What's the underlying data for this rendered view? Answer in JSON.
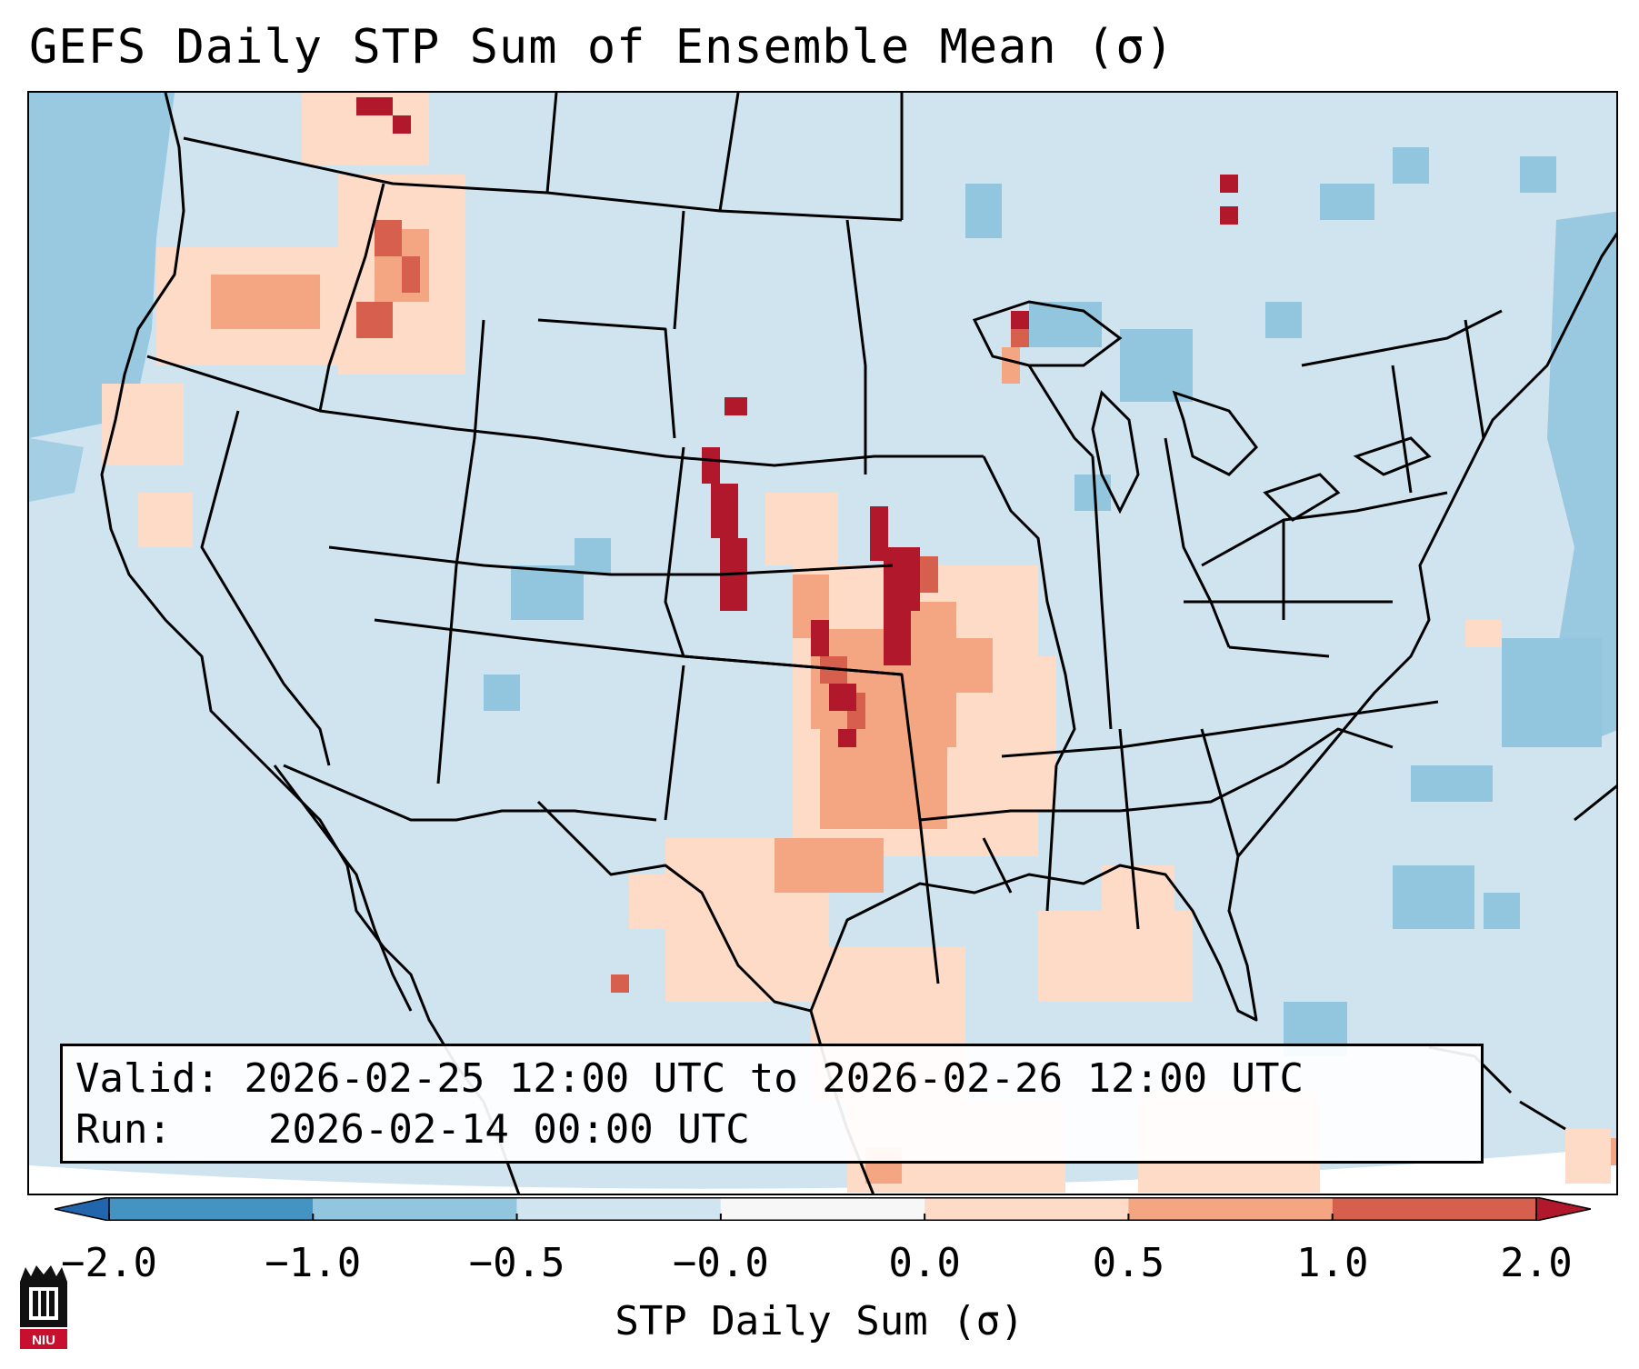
{
  "title": "GEFS Daily STP Sum of Ensemble Mean (σ)",
  "info": {
    "valid_label": "Valid:",
    "valid_value": "2026-02-25 12:00 UTC to 2026-02-26 12:00 UTC",
    "run_label": "Run:",
    "run_value": "2026-02-14 00:00 UTC"
  },
  "colorbar": {
    "label": "STP Daily Sum (σ)",
    "ticks": [
      "−2.0",
      "−1.0",
      "−0.5",
      "−0.0",
      "0.0",
      "0.5",
      "1.0",
      "2.0"
    ],
    "bins": [
      {
        "from": -2.0,
        "to": -1.0,
        "color": "#4393c3"
      },
      {
        "from": -1.0,
        "to": -0.5,
        "color": "#92c5de"
      },
      {
        "from": -0.5,
        "to": -0.0,
        "color": "#d1e5f0"
      },
      {
        "from": -0.0,
        "to": 0.0,
        "color": "#f7f7f7"
      },
      {
        "from": 0.0,
        "to": 0.5,
        "color": "#fddbc7"
      },
      {
        "from": 0.5,
        "to": 1.0,
        "color": "#f4a582"
      },
      {
        "from": 1.0,
        "to": 2.0,
        "color": "#d6604d"
      }
    ],
    "extend_low_color": "#2166ac",
    "extend_high_color": "#b2182b"
  },
  "map": {
    "background_color": "#d0e4ef",
    "offmap_color": "#ffffff",
    "region": "CONUS",
    "highlight_max_color": "#b2182b"
  },
  "logo": {
    "text": "NIU",
    "icon": "niu-castle-logo-icon"
  }
}
